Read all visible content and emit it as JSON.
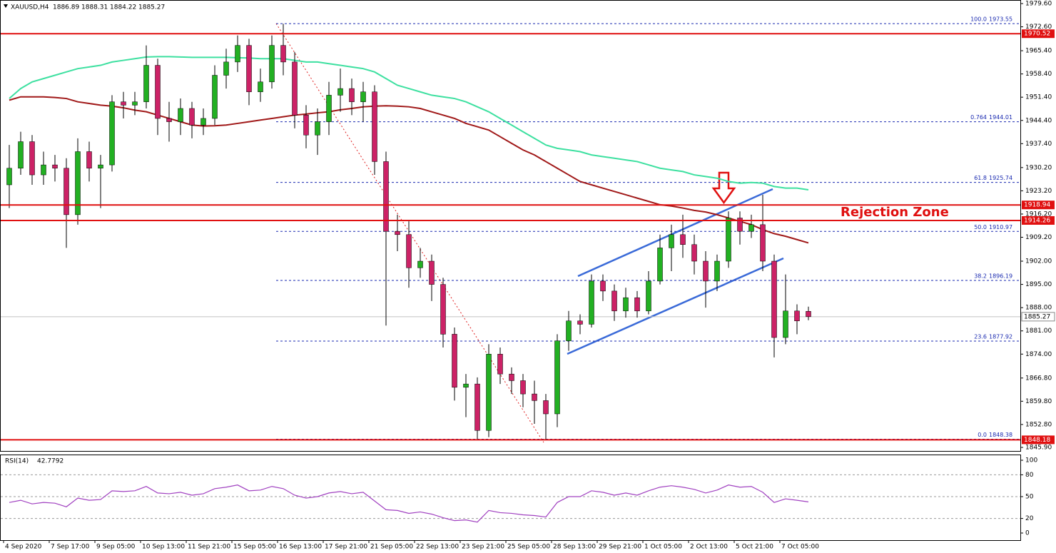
{
  "chart_data": {
    "type": "candlestick",
    "title": "XAUUSD,H4",
    "categories": [
      "4 Sep 2020",
      null,
      null,
      null,
      "7 Sep 17:00",
      null,
      null,
      null,
      "9 Sep 05:00",
      null,
      null,
      null,
      "10 Sep 13:00",
      null,
      null,
      null,
      "11 Sep 21:00",
      null,
      null,
      null,
      "15 Sep 05:00",
      null,
      null,
      null,
      "16 Sep 13:00",
      null,
      null,
      null,
      "17 Sep 21:00",
      null,
      null,
      null,
      "21 Sep 05:00",
      null,
      null,
      null,
      "22 Sep 13:00",
      null,
      null,
      null,
      "23 Sep 21:00",
      null,
      null,
      null,
      "25 Sep 05:00",
      null,
      null,
      null,
      "28 Sep 13:00",
      null,
      null,
      null,
      "29 Sep 21:00",
      null,
      null,
      null,
      "1 Oct 05:00",
      null,
      null,
      null,
      "2 Oct 13:00",
      null,
      null,
      null,
      "5 Oct 21:00",
      null,
      null,
      null,
      "7 Oct 05:00",
      null,
      null
    ],
    "open": [
      1925,
      1930,
      1938,
      1928,
      1931,
      1930,
      1916,
      1935,
      1930,
      1931,
      1950,
      1949,
      1950,
      1961,
      1945,
      1944,
      1948,
      1943,
      1945,
      1958,
      1962,
      1967,
      1953,
      1956,
      1967,
      1962,
      1946,
      1940,
      1944,
      1952,
      1954,
      1950,
      1953,
      1932,
      1911,
      1910,
      1900,
      1902,
      1895,
      1880,
      1864,
      1865,
      1851,
      1874,
      1868,
      1866,
      1862,
      1860,
      1856,
      1878,
      1884,
      1883,
      1896,
      1893,
      1887,
      1891,
      1887,
      1896,
      1906,
      1910,
      1907,
      1902,
      1896,
      1902,
      1915,
      1911,
      1913,
      1902,
      1879,
      1887,
      1886.89
    ],
    "high": [
      1937,
      1941,
      1940,
      1935,
      1934,
      1933,
      1939,
      1938,
      1934,
      1952,
      1953,
      1953,
      1967,
      1963,
      1950,
      1951,
      1950,
      1948,
      1961,
      1966,
      1970,
      1969,
      1960,
      1970,
      1973.5,
      1965,
      1949,
      1948,
      1956,
      1960,
      1957,
      1956,
      1955,
      1935,
      1916,
      1914,
      1906,
      1904,
      1897,
      1882,
      1868,
      1867,
      1877,
      1876,
      1870,
      1868,
      1866,
      1862,
      1880,
      1887,
      1886,
      1898,
      1898,
      1895,
      1894,
      1893,
      1899,
      1910,
      1913,
      1916,
      1910,
      1905,
      1904,
      1917,
      1917,
      1916,
      1922,
      1904,
      1898,
      1889,
      1888.31
    ],
    "low": [
      1918,
      1928,
      1925,
      1925,
      1926,
      1906,
      1913,
      1926,
      1918,
      1929,
      1945,
      1946,
      1948,
      1940,
      1938,
      1940,
      1939,
      1940,
      1943,
      1954,
      1959,
      1949,
      1950,
      1954,
      1958,
      1942,
      1936,
      1934,
      1940,
      1947,
      1946,
      1944,
      1928,
      1882.6,
      1905,
      1894,
      1897,
      1890,
      1876,
      1860,
      1855,
      1848.4,
      1849,
      1865,
      1862,
      1858,
      1853,
      1848.2,
      1852,
      1875,
      1880,
      1882,
      1890,
      1884,
      1885,
      1885,
      1886,
      1895,
      1899,
      1903,
      1898,
      1888,
      1893,
      1900,
      1907,
      1909,
      1899,
      1873,
      1877,
      1880,
      1884.22
    ],
    "close": [
      1930,
      1938,
      1928,
      1931,
      1930,
      1916,
      1935,
      1930,
      1931,
      1950,
      1949,
      1950,
      1961,
      1945,
      1944,
      1948,
      1943,
      1945,
      1958,
      1962,
      1967,
      1953,
      1956,
      1967,
      1962,
      1946,
      1940,
      1944,
      1952,
      1954,
      1950,
      1953,
      1932,
      1911,
      1910,
      1900,
      1902,
      1895,
      1880,
      1864,
      1865,
      1851,
      1874,
      1868,
      1866,
      1862,
      1860,
      1856,
      1878,
      1884,
      1883,
      1896,
      1893,
      1887,
      1891,
      1887,
      1896,
      1906,
      1910,
      1907,
      1902,
      1896,
      1902,
      1915,
      1911,
      1913,
      1902,
      1879,
      1887,
      1884,
      1885.27
    ],
    "up_color": "#22b022",
    "down_color": "#cc2266",
    "moving_averages": [
      {
        "color": "#3de0a0",
        "values": [
          1951,
          1954,
          1956,
          1957,
          1958,
          1959,
          1960,
          1960.5,
          1961,
          1962,
          1962.5,
          1963,
          1963.5,
          1963.6,
          1963.6,
          1963.5,
          1963.4,
          1963.4,
          1963.4,
          1963.4,
          1963.3,
          1963.2,
          1963,
          1963,
          1963,
          1962.5,
          1962,
          1962,
          1961.5,
          1961,
          1960.5,
          1960,
          1959,
          1957,
          1955,
          1954,
          1953,
          1952,
          1951.5,
          1951,
          1950,
          1948.5,
          1947,
          1945,
          1943,
          1941,
          1939,
          1937,
          1936,
          1935.5,
          1935,
          1934,
          1933.5,
          1933,
          1932.5,
          1932,
          1931,
          1930,
          1929.5,
          1929,
          1928,
          1927.5,
          1927,
          1926,
          1925.5,
          1925.7,
          1925.5,
          1924.5,
          1924,
          1924,
          1923.5
        ]
      },
      {
        "color": "#a01818",
        "values": [
          1950.5,
          1951.5,
          1951.5,
          1951.5,
          1951.3,
          1951,
          1950,
          1949.5,
          1949,
          1948.7,
          1948.2,
          1947.5,
          1947,
          1946,
          1945,
          1944,
          1943,
          1942.7,
          1942.8,
          1943,
          1943.5,
          1944,
          1944.5,
          1945,
          1945.5,
          1946,
          1946.3,
          1946.7,
          1947,
          1947.6,
          1948,
          1948.5,
          1948.7,
          1948.8,
          1948.7,
          1948.5,
          1948,
          1947,
          1946,
          1945,
          1943.5,
          1942.5,
          1941.5,
          1939.5,
          1937.5,
          1935.5,
          1934,
          1932,
          1930,
          1928,
          1926,
          1925,
          1924,
          1923,
          1922,
          1921,
          1920,
          1919,
          1918.6,
          1918,
          1917.3,
          1916.8,
          1916,
          1915,
          1914,
          1913,
          1911.5,
          1910.3,
          1909.5,
          1908.5,
          1907.5
        ]
      }
    ],
    "ylim": [
      1845.9,
      1979.6
    ],
    "yticks": [
      {
        "value": 1845.9,
        "label": "1845.90"
      },
      {
        "value": 1852.8,
        "label": "1852.80"
      },
      {
        "value": 1859.8,
        "label": "1859.80"
      },
      {
        "value": 1866.8,
        "label": "1866.80"
      },
      {
        "value": 1874,
        "label": "1874.00"
      },
      {
        "value": 1881,
        "label": "1881.00"
      },
      {
        "value": 1888,
        "label": "1888.00"
      },
      {
        "value": 1895,
        "label": "1895.00"
      },
      {
        "value": 1902,
        "label": "1902.00"
      },
      {
        "value": 1909.2,
        "label": "1909.20"
      },
      {
        "value": 1916.2,
        "label": "1916.20"
      },
      {
        "value": 1923.2,
        "label": "1923.20"
      },
      {
        "value": 1930.2,
        "label": "1930.20"
      },
      {
        "value": 1937.4,
        "label": "1937.40"
      },
      {
        "value": 1944.4,
        "label": "1944.40"
      },
      {
        "value": 1951.4,
        "label": "1951.40"
      },
      {
        "value": 1958.4,
        "label": "1958.40"
      },
      {
        "value": 1965.4,
        "label": "1965.40"
      },
      {
        "value": 1972.6,
        "label": "1972.60"
      },
      {
        "value": 1979.6,
        "label": "1979.60"
      }
    ],
    "levels": [
      1970.52,
      1918.94,
      1914.26,
      1848.18
    ],
    "level_color": "#e01010",
    "fib_levels": [
      {
        "ratio": "100.0",
        "value": 1973.55
      },
      {
        "ratio": "0.764",
        "value": 1944.01
      },
      {
        "ratio": "61.8",
        "value": 1925.74
      },
      {
        "ratio": "50.0",
        "value": 1910.97
      },
      {
        "ratio": "38.2",
        "value": 1896.19
      },
      {
        "ratio": "23.6",
        "value": 1877.92
      },
      {
        "ratio": "0.0",
        "value": 1848.38
      }
    ],
    "fib_color": "#1a2ab0",
    "annotation": "Rejection Zone",
    "rsi": {
      "label": "RSI(14)",
      "color": "#a040c0",
      "ylim": [
        0,
        100
      ],
      "yticks": [
        0,
        20,
        50,
        80,
        100
      ],
      "levels": [
        20,
        50,
        80
      ],
      "values": [
        42,
        45,
        40,
        42,
        41,
        36,
        48,
        45,
        46,
        58,
        57,
        58,
        64,
        55,
        54,
        56,
        52,
        54,
        61,
        63,
        66,
        58,
        59,
        64,
        61,
        52,
        48,
        50,
        55,
        57,
        54,
        56,
        44,
        32,
        31,
        27,
        29,
        26,
        21,
        17,
        18,
        15,
        31,
        28,
        27,
        25,
        24,
        22,
        42,
        50,
        50,
        58,
        56,
        52,
        55,
        52,
        58,
        63,
        65,
        63,
        60,
        55,
        59,
        66,
        63,
        64,
        56,
        42,
        47,
        45,
        42.7792
      ]
    }
  }
}
